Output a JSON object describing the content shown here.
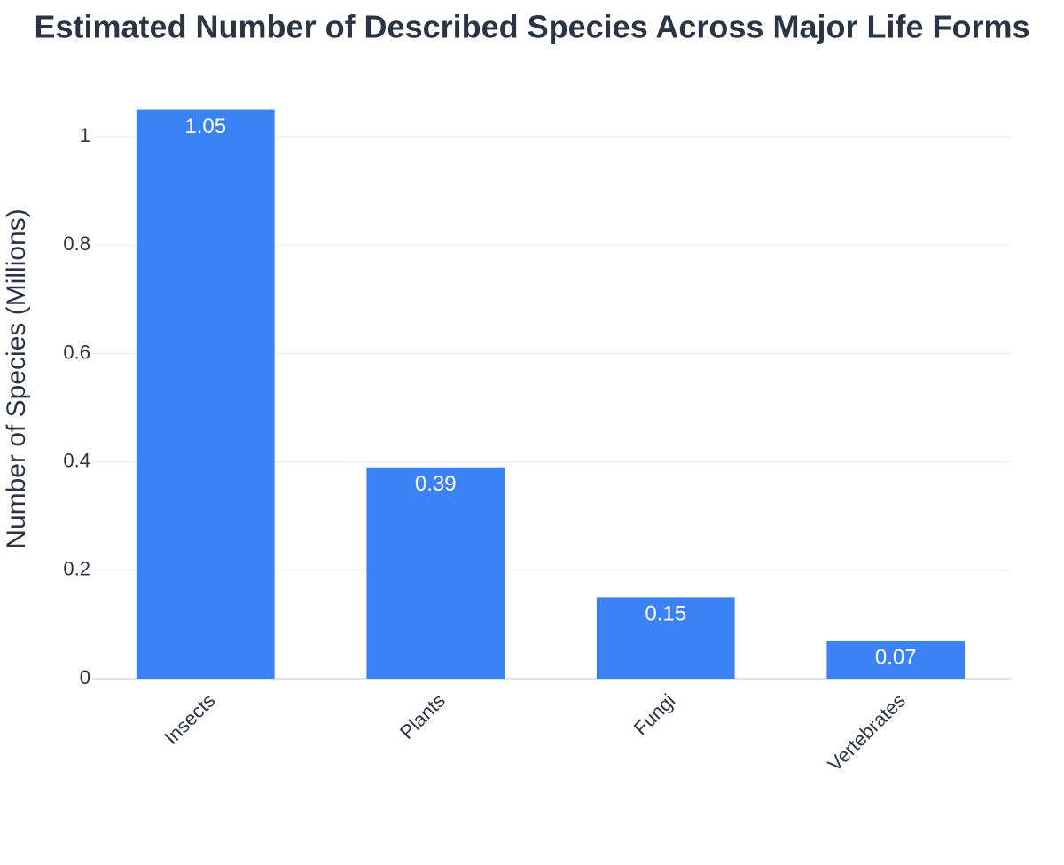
{
  "chart_data": {
    "type": "bar",
    "title": "Estimated Number of Described Species Across Major Life Forms",
    "y_label": "Number of Species (Millions)",
    "categories": [
      "Insects",
      "Plants",
      "Fungi",
      "Vertebrates"
    ],
    "values": [
      1.05,
      0.39,
      0.15,
      0.07
    ],
    "color": "#3b82f6",
    "ylim": [
      0,
      1.1
    ],
    "yticks": [
      0,
      0.2,
      0.4,
      0.6,
      0.8,
      1
    ],
    "grid": true
  }
}
